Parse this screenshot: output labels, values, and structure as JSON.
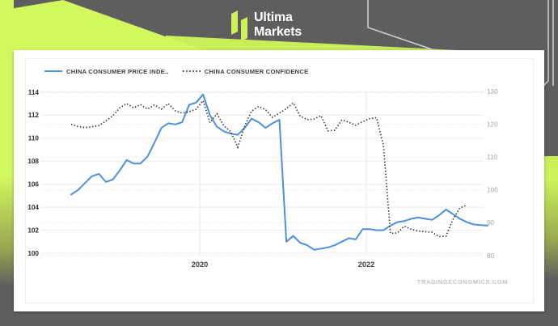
{
  "brand": {
    "line1": "Ultima",
    "line2": "Markets"
  },
  "colors": {
    "background_gray": "#5e5e5e",
    "brand_lime": "#d3f85e",
    "brand_lime_dark": "#c9ee58",
    "cpi_blue": "#4b90dd",
    "confidence_black": "#1f1f1f",
    "grid_solid": "#ececec",
    "grid_dotted": "#dedede"
  },
  "chart_data": {
    "type": "line",
    "source_text": "TRADINGECONOMICS.COM",
    "legend_position": "top-left",
    "grid": true,
    "legend": [
      {
        "label": "CHINA CONSUMER PRICE INDE..",
        "style": "solid",
        "color": "#4b90dd"
      },
      {
        "label": "CHINA CONSUMER CONFIDENCE",
        "style": "dotted",
        "color": "#1f1f1f"
      }
    ],
    "x_axis": {
      "tick_labels": [
        "2020",
        "2022"
      ],
      "tick_values": [
        2020,
        2022
      ],
      "range": [
        2018.3,
        2023.7
      ]
    },
    "y_axis_left": {
      "tick_labels": [
        "114",
        "112",
        "110",
        "108",
        "106",
        "104",
        "102",
        "100"
      ],
      "tick_values": [
        114,
        112,
        110,
        108,
        106,
        104,
        102,
        100
      ],
      "range": [
        99.8,
        114.7
      ],
      "applies_to": "CHINA CONSUMER PRICE INDE.."
    },
    "y_axis_right": {
      "tick_labels": [
        "130",
        "120",
        "110",
        "100",
        "90",
        "80"
      ],
      "tick_values": [
        130,
        120,
        110,
        100,
        90,
        80
      ],
      "range": [
        79.5,
        130.5
      ],
      "applies_to": "CHINA CONSUMER CONFIDENCE"
    },
    "series": [
      {
        "name": "China Consumer Price Index",
        "axis": "left",
        "style": "solid",
        "start_year": 2018.456,
        "interval_months": 1,
        "values": [
          105.1,
          105.5,
          106.1,
          106.7,
          106.9,
          106.2,
          106.4,
          107.2,
          108.1,
          107.8,
          107.8,
          108.4,
          109.6,
          110.9,
          111.3,
          111.2,
          111.4,
          112.9,
          113.1,
          113.8,
          112.0,
          111.0,
          110.6,
          110.4,
          110.3,
          110.9,
          111.7,
          111.4,
          110.9,
          111.3,
          111.6,
          101.0,
          101.5,
          100.9,
          100.7,
          100.3,
          100.4,
          100.5,
          100.7,
          101.0,
          101.3,
          101.2,
          102.1,
          102.1,
          102.0,
          102.0,
          102.4,
          102.7,
          102.8,
          103.0,
          103.1,
          103.0,
          102.9,
          103.3,
          103.8,
          103.4,
          103.0,
          102.7,
          102.5,
          102.45,
          102.4
        ]
      },
      {
        "name": "China Consumer Confidence",
        "axis": "right",
        "style": "dotted",
        "start_year": 2018.456,
        "interval_months": 1,
        "values": [
          120.0,
          119.3,
          119.0,
          119.2,
          119.6,
          121.0,
          122.6,
          125.0,
          126.3,
          125.0,
          126.0,
          124.6,
          125.9,
          124.6,
          126.3,
          124.1,
          123.4,
          123.8,
          124.6,
          127.2,
          120.5,
          123.2,
          119.5,
          117.7,
          113.0,
          119.5,
          124.0,
          125.4,
          124.5,
          122.1,
          123.4,
          124.8,
          126.5,
          122.5,
          121.4,
          121.6,
          122.6,
          118.0,
          118.2,
          121.3,
          120.6,
          119.7,
          120.8,
          121.7,
          122.0,
          113.5,
          86.8,
          86.9,
          89.0,
          88.0,
          87.5,
          87.3,
          87.1,
          85.8,
          85.9,
          91.0,
          94.5,
          95.4
        ]
      }
    ]
  }
}
